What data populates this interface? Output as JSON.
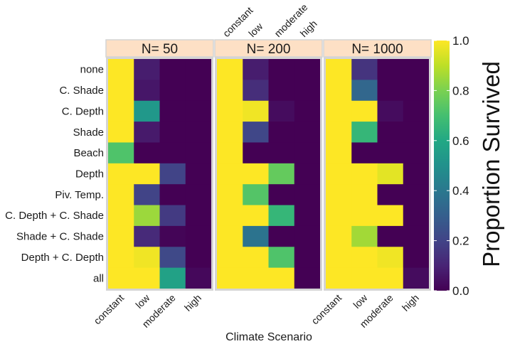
{
  "chart_data": {
    "type": "heatmap",
    "xlabel": "Climate Scenario",
    "colorbar_label": "Proportion Survived",
    "value_range": [
      0,
      1
    ],
    "colorbar_ticks": [
      0,
      0.2,
      0.4,
      0.6,
      0.8,
      1
    ],
    "colorbar_tick_labels": [
      "0.0",
      "0.2",
      "0.4",
      "0.6",
      "0.8",
      "1.0"
    ],
    "categories_x": [
      "constant",
      "low",
      "moderate",
      "high"
    ],
    "categories_y": [
      "none",
      "C. Shade",
      "C. Depth",
      "Shade",
      "Beach",
      "Depth",
      "Piv. Temp.",
      "C. Depth + C. Shade",
      "Shade + C. Shade",
      "Depth + C. Depth",
      "all"
    ],
    "facets": [
      {
        "label": "N= 50",
        "x_tick_position": "bottom",
        "values": [
          [
            1.0,
            0.08,
            0.0,
            0.0
          ],
          [
            1.0,
            0.06,
            0.0,
            0.0
          ],
          [
            1.0,
            0.53,
            0.0,
            0.0
          ],
          [
            1.0,
            0.07,
            0.0,
            0.0
          ],
          [
            0.72,
            0.0,
            0.0,
            0.0
          ],
          [
            1.0,
            1.0,
            0.2,
            0.0
          ],
          [
            1.0,
            0.2,
            0.0,
            0.0
          ],
          [
            1.0,
            0.85,
            0.17,
            0.0
          ],
          [
            1.0,
            0.12,
            0.01,
            0.0
          ],
          [
            1.0,
            0.98,
            0.22,
            0.0
          ],
          [
            1.0,
            1.0,
            0.57,
            0.02
          ]
        ]
      },
      {
        "label": "N= 200",
        "x_tick_position": "top",
        "values": [
          [
            1.0,
            0.08,
            0.0,
            0.0
          ],
          [
            1.0,
            0.13,
            0.0,
            0.0
          ],
          [
            1.0,
            0.98,
            0.03,
            0.0
          ],
          [
            1.0,
            0.21,
            0.0,
            0.0
          ],
          [
            1.0,
            0.0,
            0.0,
            0.0
          ],
          [
            1.0,
            1.0,
            0.76,
            0.0
          ],
          [
            1.0,
            0.73,
            0.0,
            0.0
          ],
          [
            1.0,
            1.0,
            0.66,
            0.0
          ],
          [
            1.0,
            0.38,
            0.0,
            0.0
          ],
          [
            1.0,
            1.0,
            0.72,
            0.0
          ],
          [
            1.0,
            1.0,
            1.0,
            0.0
          ]
        ]
      },
      {
        "label": "N= 1000",
        "x_tick_position": "bottom",
        "values": [
          [
            1.0,
            0.15,
            0.0,
            0.0
          ],
          [
            1.0,
            0.33,
            0.0,
            0.0
          ],
          [
            1.0,
            1.0,
            0.03,
            0.0
          ],
          [
            1.0,
            0.66,
            0.0,
            0.0
          ],
          [
            1.0,
            0.0,
            0.0,
            0.0
          ],
          [
            1.0,
            1.0,
            0.96,
            0.0
          ],
          [
            1.0,
            1.0,
            0.0,
            0.0
          ],
          [
            1.0,
            1.0,
            1.0,
            0.0
          ],
          [
            1.0,
            0.86,
            0.0,
            0.0
          ],
          [
            1.0,
            1.0,
            0.98,
            0.0
          ],
          [
            1.0,
            1.0,
            1.0,
            0.03
          ]
        ]
      }
    ]
  },
  "colors": {
    "strip_fill": "#fde0c5",
    "panel_border": "#d4d4d4",
    "colorbar_tick": "#ffffff",
    "viridis": [
      "#440154",
      "#482475",
      "#414487",
      "#355f8d",
      "#2a788e",
      "#21918c",
      "#22a884",
      "#44bf70",
      "#7ad151",
      "#bddf26",
      "#fde725"
    ]
  }
}
